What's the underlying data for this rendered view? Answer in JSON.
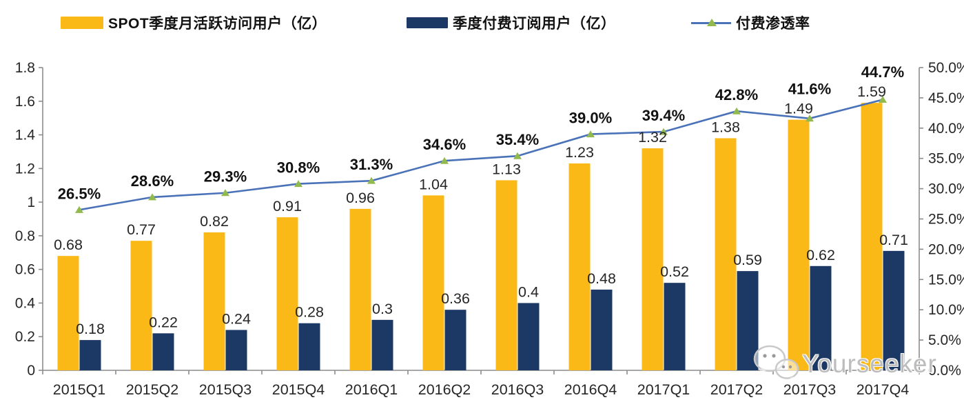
{
  "colors": {
    "mau_bar": "#FBB917",
    "subs_bar": "#1C3864",
    "line": "#4A72B8",
    "marker": "#92B94E",
    "axis": "#8C8C8C",
    "label_text": "#262626",
    "pct_text": "#111111",
    "watermark": "#BDBDBD"
  },
  "legend": {
    "items": [
      {
        "label": "SPOT季度月活跃访问用户（亿）",
        "type": "bar",
        "color": "#FBB917"
      },
      {
        "label": "季度付费订阅用户（亿）",
        "type": "bar",
        "color": "#1C3864"
      },
      {
        "label": "付费渗透率",
        "type": "line",
        "color": "#4A72B8",
        "marker_color": "#92B94E"
      }
    ]
  },
  "watermark": {
    "text": "Yourseeker",
    "icon": "wechat-icon"
  },
  "chart_data": {
    "type": "combo-bar-line",
    "title": "",
    "categories": [
      "2015Q1",
      "2015Q2",
      "2015Q3",
      "2015Q4",
      "2016Q1",
      "2016Q2",
      "2016Q3",
      "2016Q4",
      "2017Q1",
      "2017Q2",
      "2017Q3",
      "2017Q4"
    ],
    "series": [
      {
        "name": "SPOT季度月活跃访问用户（亿）",
        "type": "bar",
        "axis": "left",
        "color": "#FBB917",
        "values": [
          0.68,
          0.77,
          0.82,
          0.91,
          0.96,
          1.04,
          1.13,
          1.23,
          1.32,
          1.38,
          1.49,
          1.59
        ],
        "labels": [
          "0.68",
          "0.77",
          "0.82",
          "0.91",
          "0.96",
          "1.04",
          "1.13",
          "1.23",
          "1.32",
          "1.38",
          "1.49",
          "1.59"
        ]
      },
      {
        "name": "季度付费订阅用户（亿）",
        "type": "bar",
        "axis": "left",
        "color": "#1C3864",
        "values": [
          0.18,
          0.22,
          0.24,
          0.28,
          0.3,
          0.36,
          0.4,
          0.48,
          0.52,
          0.59,
          0.62,
          0.71
        ],
        "labels": [
          "0.18",
          "0.22",
          "0.24",
          "0.28",
          "0.3",
          "0.36",
          "0.4",
          "0.48",
          "0.52",
          "0.59",
          "0.62",
          "0.71"
        ]
      },
      {
        "name": "付费渗透率",
        "type": "line",
        "axis": "right",
        "color": "#4A72B8",
        "marker": "triangle",
        "marker_color": "#92B94E",
        "values": [
          26.5,
          28.6,
          29.3,
          30.8,
          31.3,
          34.6,
          35.4,
          39.0,
          39.4,
          42.8,
          41.6,
          44.7
        ],
        "labels": [
          "26.5%",
          "28.6%",
          "29.3%",
          "30.8%",
          "31.3%",
          "34.6%",
          "35.4%",
          "39.0%",
          "39.4%",
          "42.8%",
          "41.6%",
          "44.7%"
        ]
      }
    ],
    "left_axis": {
      "min": 0,
      "max": 1.8,
      "step": 0.2,
      "ticks": [
        "0",
        "0.2",
        "0.4",
        "0.6",
        "0.8",
        "1",
        "1.2",
        "1.4",
        "1.6",
        "1.8"
      ]
    },
    "right_axis": {
      "min": 0,
      "max": 50,
      "step": 5,
      "ticks": [
        "0.0%",
        "5.0%",
        "10.0%",
        "15.0%",
        "20.0%",
        "25.0%",
        "30.0%",
        "35.0%",
        "40.0%",
        "45.0%",
        "50.0%"
      ]
    },
    "grid": false,
    "legend_position": "top"
  }
}
